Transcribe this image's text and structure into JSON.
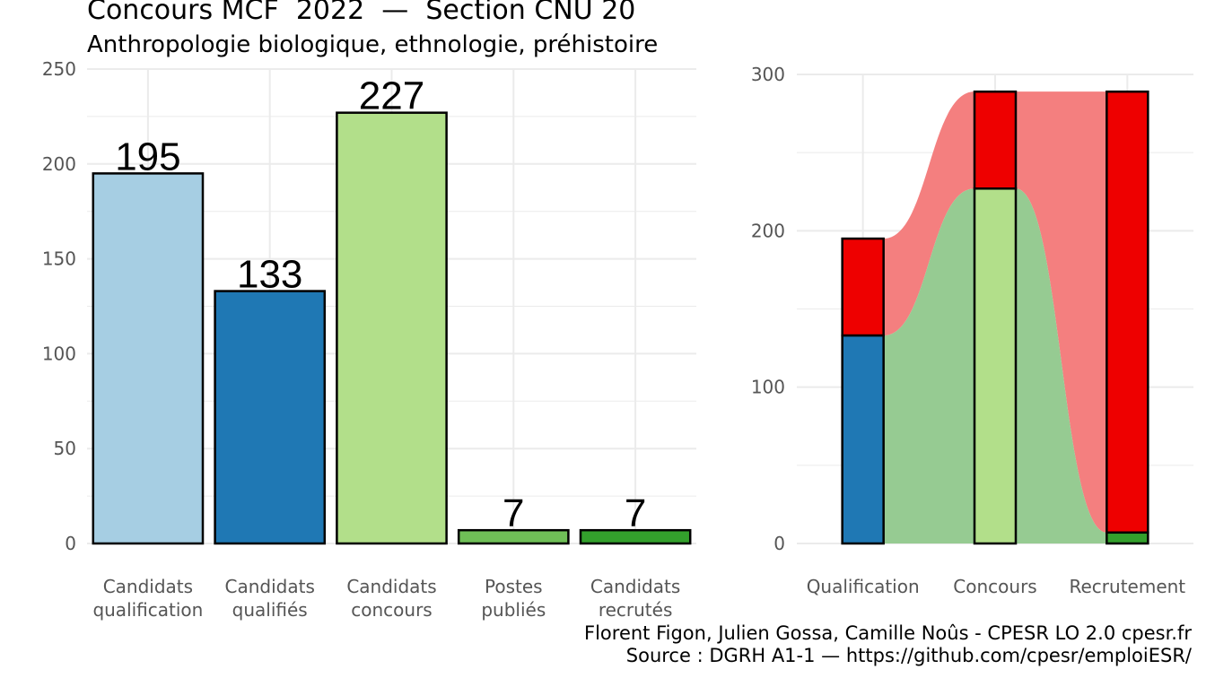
{
  "title": "Concours MCF  2022  —  Section CNU 20",
  "subtitle": "Anthropologie biologique, ethnologie, préhistoire",
  "caption": {
    "line1": "Florent Figon, Julien Gossa, Camille Noûs - CPESR LO 2.0 cpesr.fr",
    "line2": "Source : DGRH A1-1 — https://github.com/cpesr/emploiESR/"
  },
  "colors": {
    "candidats_qualification": "#a6cee3",
    "candidats_qualifies": "#1f78b4",
    "candidats_concours": "#b2df8a",
    "postes_publies": "#6fbf57",
    "candidats_recrutes": "#33a02c",
    "non_retenus": "#ee0000",
    "flow_red": "#f47f7f",
    "flow_green": "#96cb92",
    "grid": "#ebebeb"
  },
  "chart_data": [
    {
      "type": "bar",
      "categories": [
        [
          "Candidats",
          "qualification"
        ],
        [
          "Candidats",
          "qualifiés"
        ],
        [
          "Candidats",
          "concours"
        ],
        [
          "Postes",
          "publiés"
        ],
        [
          "Candidats",
          "recrutés"
        ]
      ],
      "values": [
        195,
        133,
        227,
        7,
        7
      ],
      "data_labels": [
        "195",
        "133",
        "227",
        "7",
        "7"
      ],
      "ylim": [
        0,
        250
      ],
      "yticks": [
        "0",
        "50",
        "100",
        "150",
        "200",
        "250"
      ],
      "grid": true
    },
    {
      "type": "bar",
      "stacked": true,
      "categories": [
        "Qualification",
        "Concours",
        "Recrutement"
      ],
      "totals": [
        195,
        289,
        289
      ],
      "lower_values": [
        133,
        227,
        7
      ],
      "ylim": [
        0,
        300
      ],
      "yticks": [
        "0",
        "100",
        "200",
        "300"
      ],
      "grid": true
    }
  ]
}
